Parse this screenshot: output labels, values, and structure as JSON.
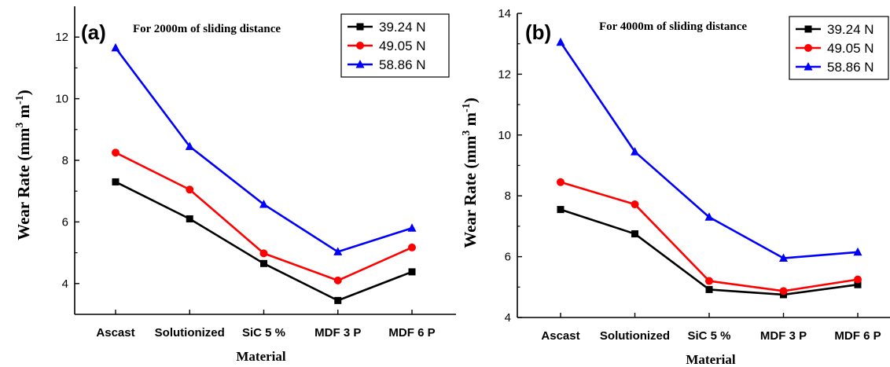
{
  "chart_data": [
    {
      "type": "line",
      "panel": "(a)",
      "annotation": "For 2000m of sliding distance",
      "xlabel": "Material",
      "ylabel": "Wear Rate (mm3 m-1)",
      "ylabel_parts": {
        "main": "Wear Rate (mm",
        "exp1": "3",
        "mid": " m",
        "exp2": "-1",
        "close": ")"
      },
      "categories": [
        "Ascast",
        "Solutionized",
        "SiC 5 %",
        "MDF 3 P",
        "MDF 6 P"
      ],
      "ylim": [
        3,
        13
      ],
      "yticks": [
        4,
        6,
        8,
        10,
        12
      ],
      "grid": false,
      "legend_position": "top-right",
      "series": [
        {
          "name": "39.24 N",
          "color": "#000000",
          "marker": "square",
          "values": [
            7.3,
            6.1,
            4.65,
            3.45,
            4.38
          ]
        },
        {
          "name": "49.05 N",
          "color": "#ff0000",
          "marker": "circle",
          "values": [
            8.25,
            7.05,
            4.98,
            4.1,
            5.17
          ]
        },
        {
          "name": "58.86 N",
          "color": "#0000ff",
          "marker": "triangle",
          "values": [
            11.65,
            8.45,
            6.57,
            5.03,
            5.8
          ]
        }
      ]
    },
    {
      "type": "line",
      "panel": "(b)",
      "annotation": "For 4000m of sliding distance",
      "xlabel": "Material",
      "ylabel": "Wear Rate (mm3 m-1)",
      "ylabel_parts": {
        "main": "Wear Rate (mm",
        "exp1": "3",
        "mid": " m",
        "exp2": "-1",
        "close": ")"
      },
      "categories": [
        "Ascast",
        "Solutionized",
        "SiC 5 %",
        "MDF 3 P",
        "MDF 6 P"
      ],
      "ylim": [
        4,
        14
      ],
      "yticks": [
        4,
        6,
        8,
        10,
        12,
        14
      ],
      "grid": false,
      "legend_position": "top-right",
      "series": [
        {
          "name": "39.24 N",
          "color": "#000000",
          "marker": "square",
          "values": [
            7.55,
            6.75,
            4.92,
            4.75,
            5.08
          ]
        },
        {
          "name": "49.05 N",
          "color": "#ff0000",
          "marker": "circle",
          "values": [
            8.45,
            7.72,
            5.2,
            4.87,
            5.25
          ]
        },
        {
          "name": "58.86 N",
          "color": "#0000ff",
          "marker": "triangle",
          "values": [
            13.05,
            9.45,
            7.3,
            5.95,
            6.15
          ]
        }
      ]
    }
  ]
}
